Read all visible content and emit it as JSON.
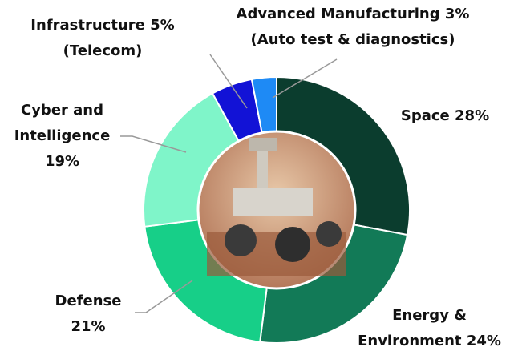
{
  "chart_data": {
    "type": "donut",
    "categories": [
      "Space",
      "Energy & Environment",
      "Defense",
      "Cyber and Intelligence",
      "Infrastructure",
      "Advanced Manufacturing"
    ],
    "category_notes": [
      null,
      null,
      null,
      null,
      "(Telecom)",
      "(Auto test & diagnostics)"
    ],
    "values": [
      28,
      24,
      21,
      19,
      5,
      3
    ],
    "value_labels": [
      "28%",
      "24%",
      "21%",
      "19%",
      "5%",
      "3%"
    ],
    "colors": [
      "#0b3d2e",
      "#127a57",
      "#17cf88",
      "#7ff5c9",
      "#1212d6",
      "#1e8af5"
    ]
  }
}
